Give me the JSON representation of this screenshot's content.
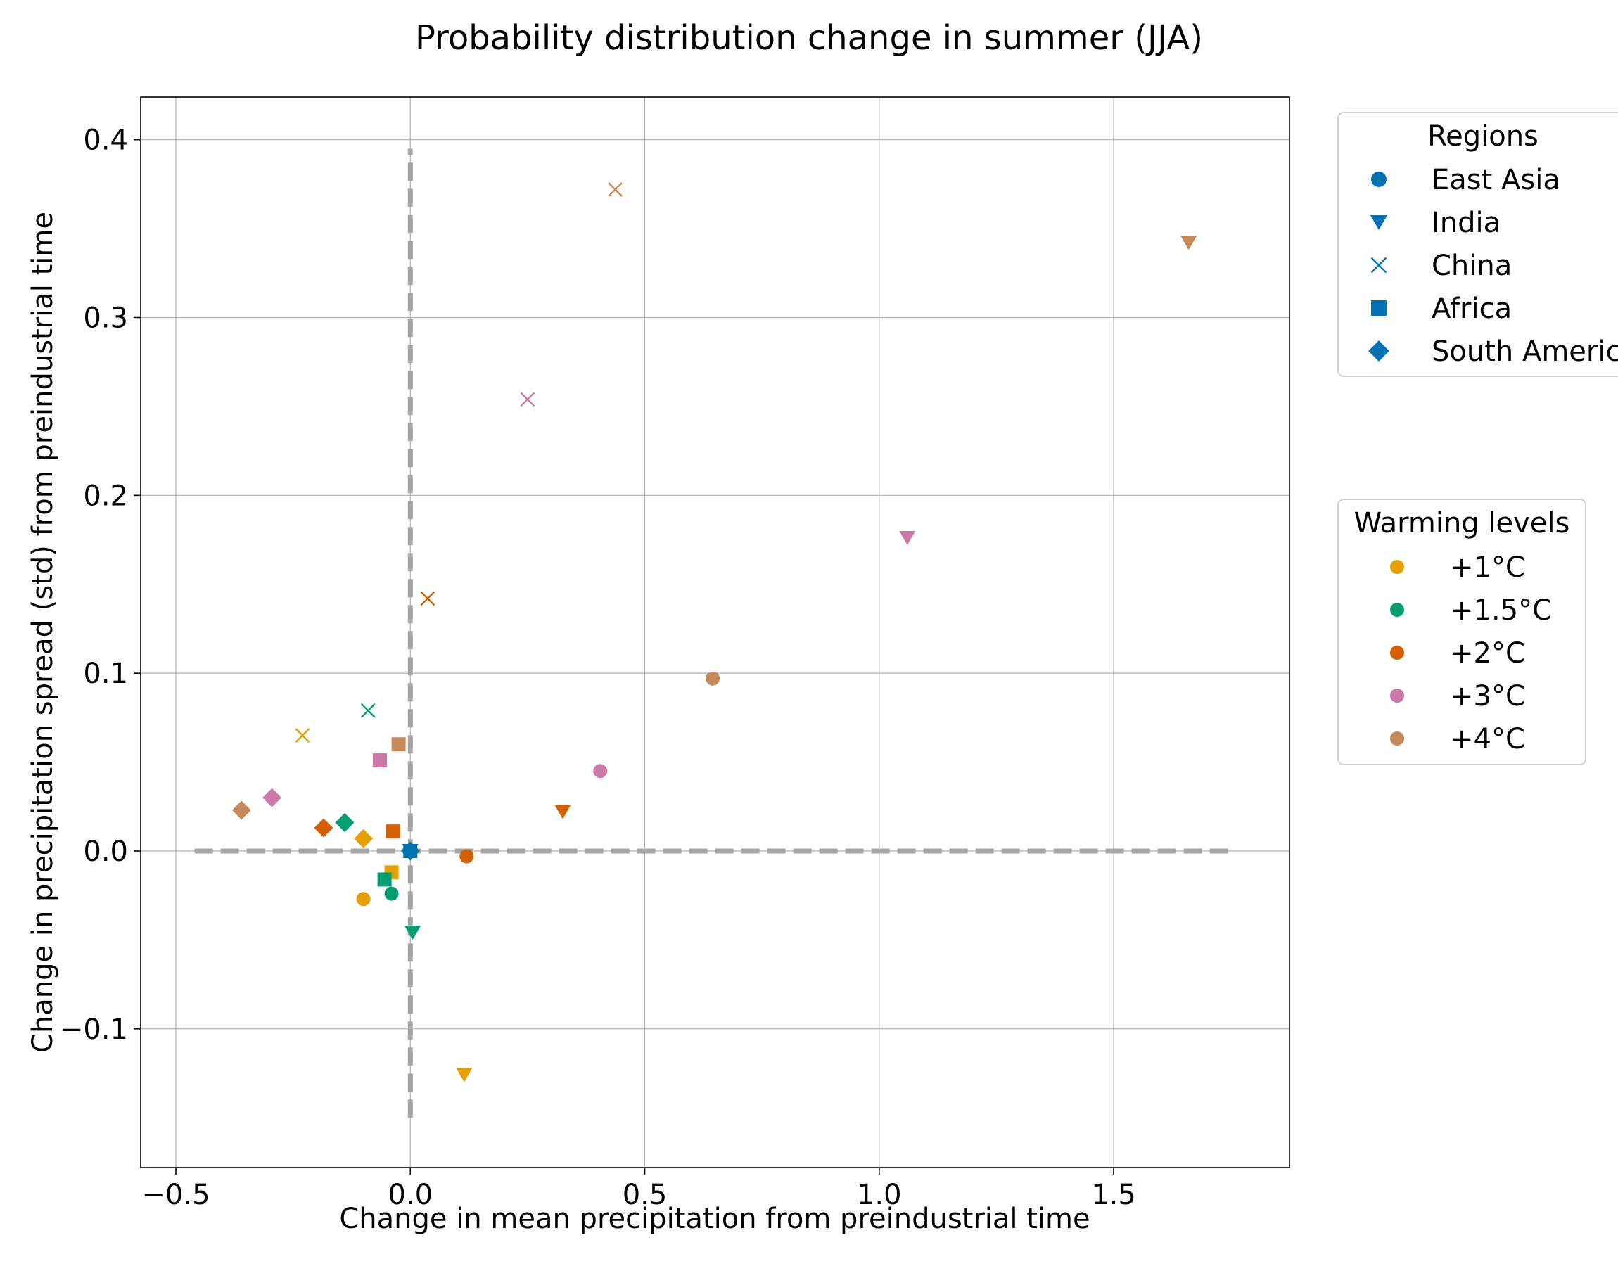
{
  "chart_data": {
    "type": "scatter",
    "title": "Probability distribution change in summer (JJA)",
    "xlabel": "Change in mean precipitation from preindustrial time",
    "ylabel": "Change in precipitation spread (std) from preindustrial time",
    "xlim": [
      -0.575,
      1.875
    ],
    "ylim": [
      -0.178,
      0.424
    ],
    "xticks": [
      -0.5,
      0.0,
      0.5,
      1.0,
      1.5
    ],
    "xtick_labels": [
      "−0.5",
      "0.0",
      "0.5",
      "1.0",
      "1.5"
    ],
    "yticks": [
      -0.1,
      0.0,
      0.1,
      0.2,
      0.3,
      0.4
    ],
    "ytick_labels": [
      "−0.1",
      "0.0",
      "0.1",
      "0.2",
      "0.3",
      "0.4"
    ],
    "grid": true,
    "reference_lines": [
      {
        "orientation": "horizontal",
        "y": 0.0,
        "x_range": [
          -0.46,
          1.76
        ],
        "style": "dashed",
        "color": "#a6a6a6"
      },
      {
        "orientation": "vertical",
        "x": 0.0,
        "y_range": [
          -0.15,
          0.395
        ],
        "style": "dashed",
        "color": "#a6a6a6"
      }
    ],
    "reference_point": {
      "region": "East Asia",
      "x": 0.0,
      "y": 0.0,
      "color": "#0072b2"
    },
    "legends": [
      {
        "title": "Regions",
        "placement": "outside right, top",
        "entries": [
          {
            "label": "East Asia",
            "marker": "circle"
          },
          {
            "label": "India",
            "marker": "triangle-down"
          },
          {
            "label": "China",
            "marker": "x"
          },
          {
            "label": "Africa",
            "marker": "square"
          },
          {
            "label": "South America",
            "marker": "diamond"
          }
        ],
        "color": "#0072b2"
      },
      {
        "title": "Warming levels",
        "placement": "outside right, middle",
        "entries": [
          {
            "label": "+1°C",
            "color": "#e69f00"
          },
          {
            "label": "+1.5°C",
            "color": "#009e73"
          },
          {
            "label": "+2°C",
            "color": "#d55e00"
          },
          {
            "label": "+3°C",
            "color": "#cc79a7"
          },
          {
            "label": "+4°C",
            "color": "#c68a5a"
          }
        ]
      }
    ],
    "series": [
      {
        "region": "East Asia",
        "warming": "+1°C",
        "x": -0.1,
        "y": -0.027
      },
      {
        "region": "India",
        "warming": "+1°C",
        "x": 0.115,
        "y": -0.126
      },
      {
        "region": "China",
        "warming": "+1°C",
        "x": -0.23,
        "y": 0.065
      },
      {
        "region": "Africa",
        "warming": "+1°C",
        "x": -0.04,
        "y": -0.012
      },
      {
        "region": "South America",
        "warming": "+1°C",
        "x": -0.1,
        "y": 0.007
      },
      {
        "region": "East Asia",
        "warming": "+1.5°C",
        "x": -0.04,
        "y": -0.024
      },
      {
        "region": "India",
        "warming": "+1.5°C",
        "x": 0.005,
        "y": -0.046
      },
      {
        "region": "China",
        "warming": "+1.5°C",
        "x": -0.09,
        "y": 0.079
      },
      {
        "region": "Africa",
        "warming": "+1.5°C",
        "x": -0.055,
        "y": -0.016
      },
      {
        "region": "South America",
        "warming": "+1.5°C",
        "x": -0.14,
        "y": 0.016
      },
      {
        "region": "East Asia",
        "warming": "+2°C",
        "x": 0.12,
        "y": -0.003
      },
      {
        "region": "India",
        "warming": "+2°C",
        "x": 0.325,
        "y": 0.022
      },
      {
        "region": "China",
        "warming": "+2°C",
        "x": 0.037,
        "y": 0.142
      },
      {
        "region": "Africa",
        "warming": "+2°C",
        "x": -0.037,
        "y": 0.011
      },
      {
        "region": "South America",
        "warming": "+2°C",
        "x": -0.185,
        "y": 0.013
      },
      {
        "region": "East Asia",
        "warming": "+3°C",
        "x": 0.405,
        "y": 0.045
      },
      {
        "region": "India",
        "warming": "+3°C",
        "x": 1.06,
        "y": 0.176
      },
      {
        "region": "China",
        "warming": "+3°C",
        "x": 0.25,
        "y": 0.254
      },
      {
        "region": "Africa",
        "warming": "+3°C",
        "x": -0.065,
        "y": 0.051
      },
      {
        "region": "South America",
        "warming": "+3°C",
        "x": -0.295,
        "y": 0.03
      },
      {
        "region": "East Asia",
        "warming": "+4°C",
        "x": 0.645,
        "y": 0.097
      },
      {
        "region": "India",
        "warming": "+4°C",
        "x": 1.66,
        "y": 0.342
      },
      {
        "region": "China",
        "warming": "+4°C",
        "x": 0.437,
        "y": 0.372
      },
      {
        "region": "Africa",
        "warming": "+4°C",
        "x": -0.025,
        "y": 0.06
      },
      {
        "region": "South America",
        "warming": "+4°C",
        "x": -0.36,
        "y": 0.023
      }
    ]
  }
}
